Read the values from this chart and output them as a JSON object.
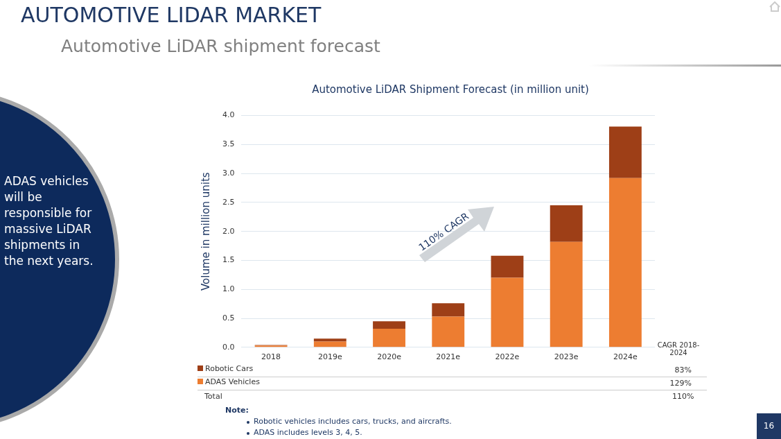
{
  "chart_data": {
    "type": "bar",
    "title": "AUTOMOTIVE LIDAR MARKET",
    "subtitle": "Automotive LiDAR shipment forecast",
    "ylabel": "Volume in million units",
    "categories": [
      "2018",
      "2019e",
      "2020e",
      "2021e",
      "2022e",
      "2023e",
      "2024e"
    ],
    "series": [
      {
        "name": "ADAS Vehicles",
        "color": "#ed7d31",
        "values": [
          0.03,
          0.1,
          0.32,
          0.53,
          1.2,
          1.82,
          2.92
        ]
      },
      {
        "name": "Robotic Cars",
        "color": "#9e3f17",
        "values": [
          0.01,
          0.05,
          0.13,
          0.23,
          0.38,
          0.63,
          0.89
        ]
      }
    ],
    "stacked": true,
    "ylim": [
      0,
      4
    ],
    "yticks": [
      {
        "value": 0,
        "label": "0.0"
      },
      {
        "value": 0.5,
        "label": "0.5"
      },
      {
        "value": 1,
        "label": "1.0"
      },
      {
        "value": 1.5,
        "label": "1.5"
      },
      {
        "value": 2,
        "label": "2.0"
      },
      {
        "value": 2.5,
        "label": "2.5"
      },
      {
        "value": 3,
        "label": "3.0"
      },
      {
        "value": 3.5,
        "label": "3.5"
      },
      {
        "value": 4,
        "label": "4.0"
      }
    ],
    "grid": "y",
    "legend": "bottom",
    "annotations": [
      "Automotive LiDAR Shipment Forecast (in million unit)",
      "110% CAGR",
      "CAGR 2018-2024",
      "83%",
      "129%",
      "Total",
      "110%",
      "Note:",
      "Robotic vehicles includes cars, trucks, and aircrafts.",
      "ADAS includes levels 3, 4, 5.",
      "ADAS vehicles will be responsible for massive LiDAR shipments in the next years.",
      "16"
    ]
  }
}
